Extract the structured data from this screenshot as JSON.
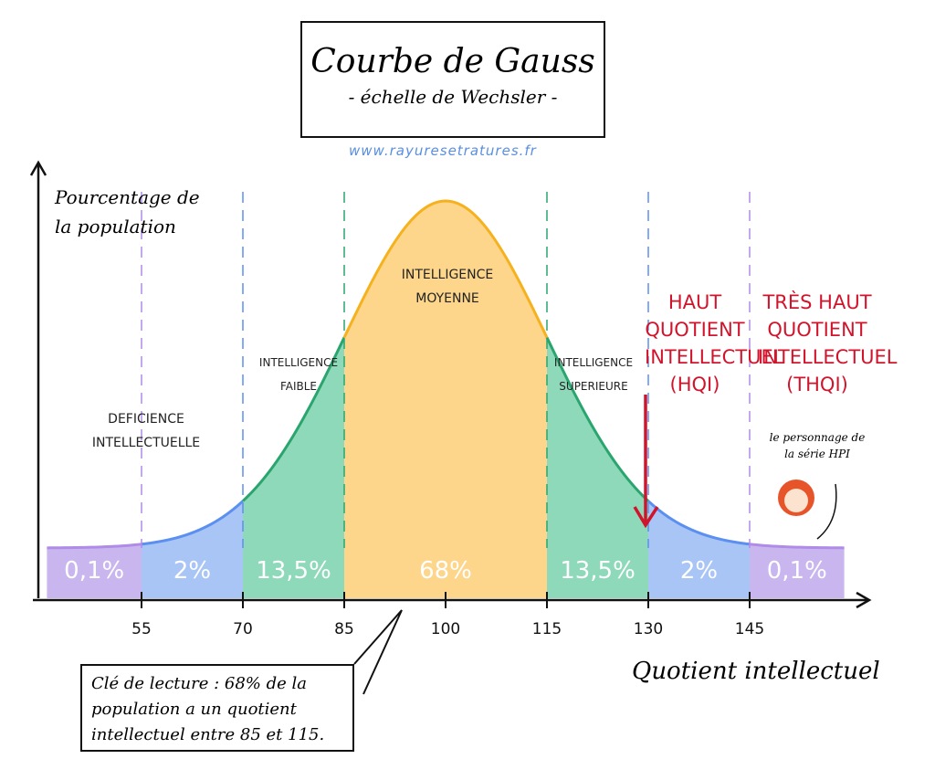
{
  "title": {
    "main": "Courbe de Gauss",
    "sub": "- échelle de Wechsler -"
  },
  "url": "www.rayuresetratures.fr",
  "chart_data": {
    "type": "area",
    "title": "Courbe de Gauss - échelle de Wechsler",
    "xlabel": "Quotient intellectuel",
    "ylabel": "Pourcentage de la population",
    "mean": 100,
    "sd": 15,
    "xlim": [
      41,
      159
    ],
    "ticks": [
      55,
      70,
      85,
      100,
      115,
      130,
      145
    ],
    "regions": [
      {
        "from": 41,
        "to": 55,
        "pct": "0,1%",
        "color": "#c9b6ee",
        "stroke": "#b08be8"
      },
      {
        "from": 55,
        "to": 70,
        "pct": "2%",
        "color": "#a9c5f6",
        "stroke": "#5b8ff0"
      },
      {
        "from": 70,
        "to": 85,
        "pct": "13,5%",
        "color": "#8fd9bb",
        "stroke": "#2aa56e"
      },
      {
        "from": 85,
        "to": 115,
        "pct": "68%",
        "color": "#fdd68b",
        "stroke": "#f5b21e"
      },
      {
        "from": 115,
        "to": 130,
        "pct": "13,5%",
        "color": "#8fd9bb",
        "stroke": "#2aa56e"
      },
      {
        "from": 130,
        "to": 145,
        "pct": "2%",
        "color": "#a9c5f6",
        "stroke": "#5b8ff0"
      },
      {
        "from": 145,
        "to": 159,
        "pct": "0,1%",
        "color": "#c9b6ee",
        "stroke": "#b08be8"
      }
    ],
    "dividers": [
      {
        "x": 55,
        "color": "#b08be8"
      },
      {
        "x": 70,
        "color": "#5b8ff0"
      },
      {
        "x": 85,
        "color": "#2aa56e"
      },
      {
        "x": 115,
        "color": "#2aa56e"
      },
      {
        "x": 130,
        "color": "#5b8ff0"
      },
      {
        "x": 145,
        "color": "#b08be8"
      }
    ]
  },
  "labels": {
    "deficience": "Deficience intellectuelle",
    "faible": "Intelligence faible",
    "moyenne": "Intelligence moyenne",
    "superieure": "Intelligence superieure",
    "hqi": "HAUT QUOTIENT INTELLECTUEL (HQI)",
    "thqi": "TRÈS HAUT QUOTIENT INTELLECTUEL (THQI)"
  },
  "ylabel_lines": [
    "Pourcentage de",
    "la population"
  ],
  "character_note": "le personnage de la série HPI",
  "reading_note": "Clé de lecture : 68% de la population a un quotient intellectuel entre 85 et 115."
}
